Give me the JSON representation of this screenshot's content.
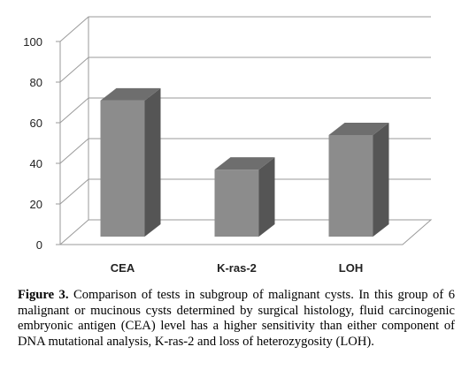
{
  "chart_data": {
    "type": "bar",
    "style": "3d",
    "categories": [
      "CEA",
      "K-ras-2",
      "LOH"
    ],
    "values": [
      67,
      33,
      50
    ],
    "ylim": [
      0,
      100
    ],
    "yticks": [
      "0",
      "20",
      "40",
      "60",
      "80",
      "100"
    ],
    "grid": true,
    "legend": "none",
    "colors": {
      "bar_front": "#8c8c8c",
      "bar_side": "#555555",
      "bar_top": "#6e6e6e",
      "grid": "#9a9a9a"
    }
  },
  "caption": {
    "label": "Figure 3.",
    "text": " Comparison of tests in subgroup of malignant cysts. In this group of 6 malignant or mucinous cysts determined by surgical histology, fluid carcinogenic embryonic antigen (CEA) level has a higher sensitivity than either component of DNA mutational analysis, K-ras-2 and loss of heterozygosity (LOH)."
  }
}
